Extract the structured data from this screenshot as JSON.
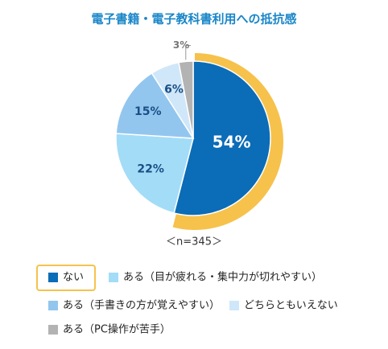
{
  "chart_data": {
    "type": "pie",
    "title": "電子書籍・電子教科書利用への抵抗感",
    "note": "＜n=345＞",
    "categories": [
      "ない",
      "ある（目が疲れる・集中力が切れやすい）",
      "ある（手書きの方が覚えやすい）",
      "どちらともいえない",
      "ある（PC操作が苦手）"
    ],
    "values": [
      54,
      22,
      15,
      6,
      3
    ],
    "value_labels": [
      "54%",
      "22%",
      "15%",
      "6%",
      "3%"
    ],
    "colors": [
      "#0b6cb7",
      "#a3dcf7",
      "#92c6ee",
      "#cfe7f9",
      "#b3b3b3"
    ],
    "highlight_color": "#f6c24c"
  }
}
